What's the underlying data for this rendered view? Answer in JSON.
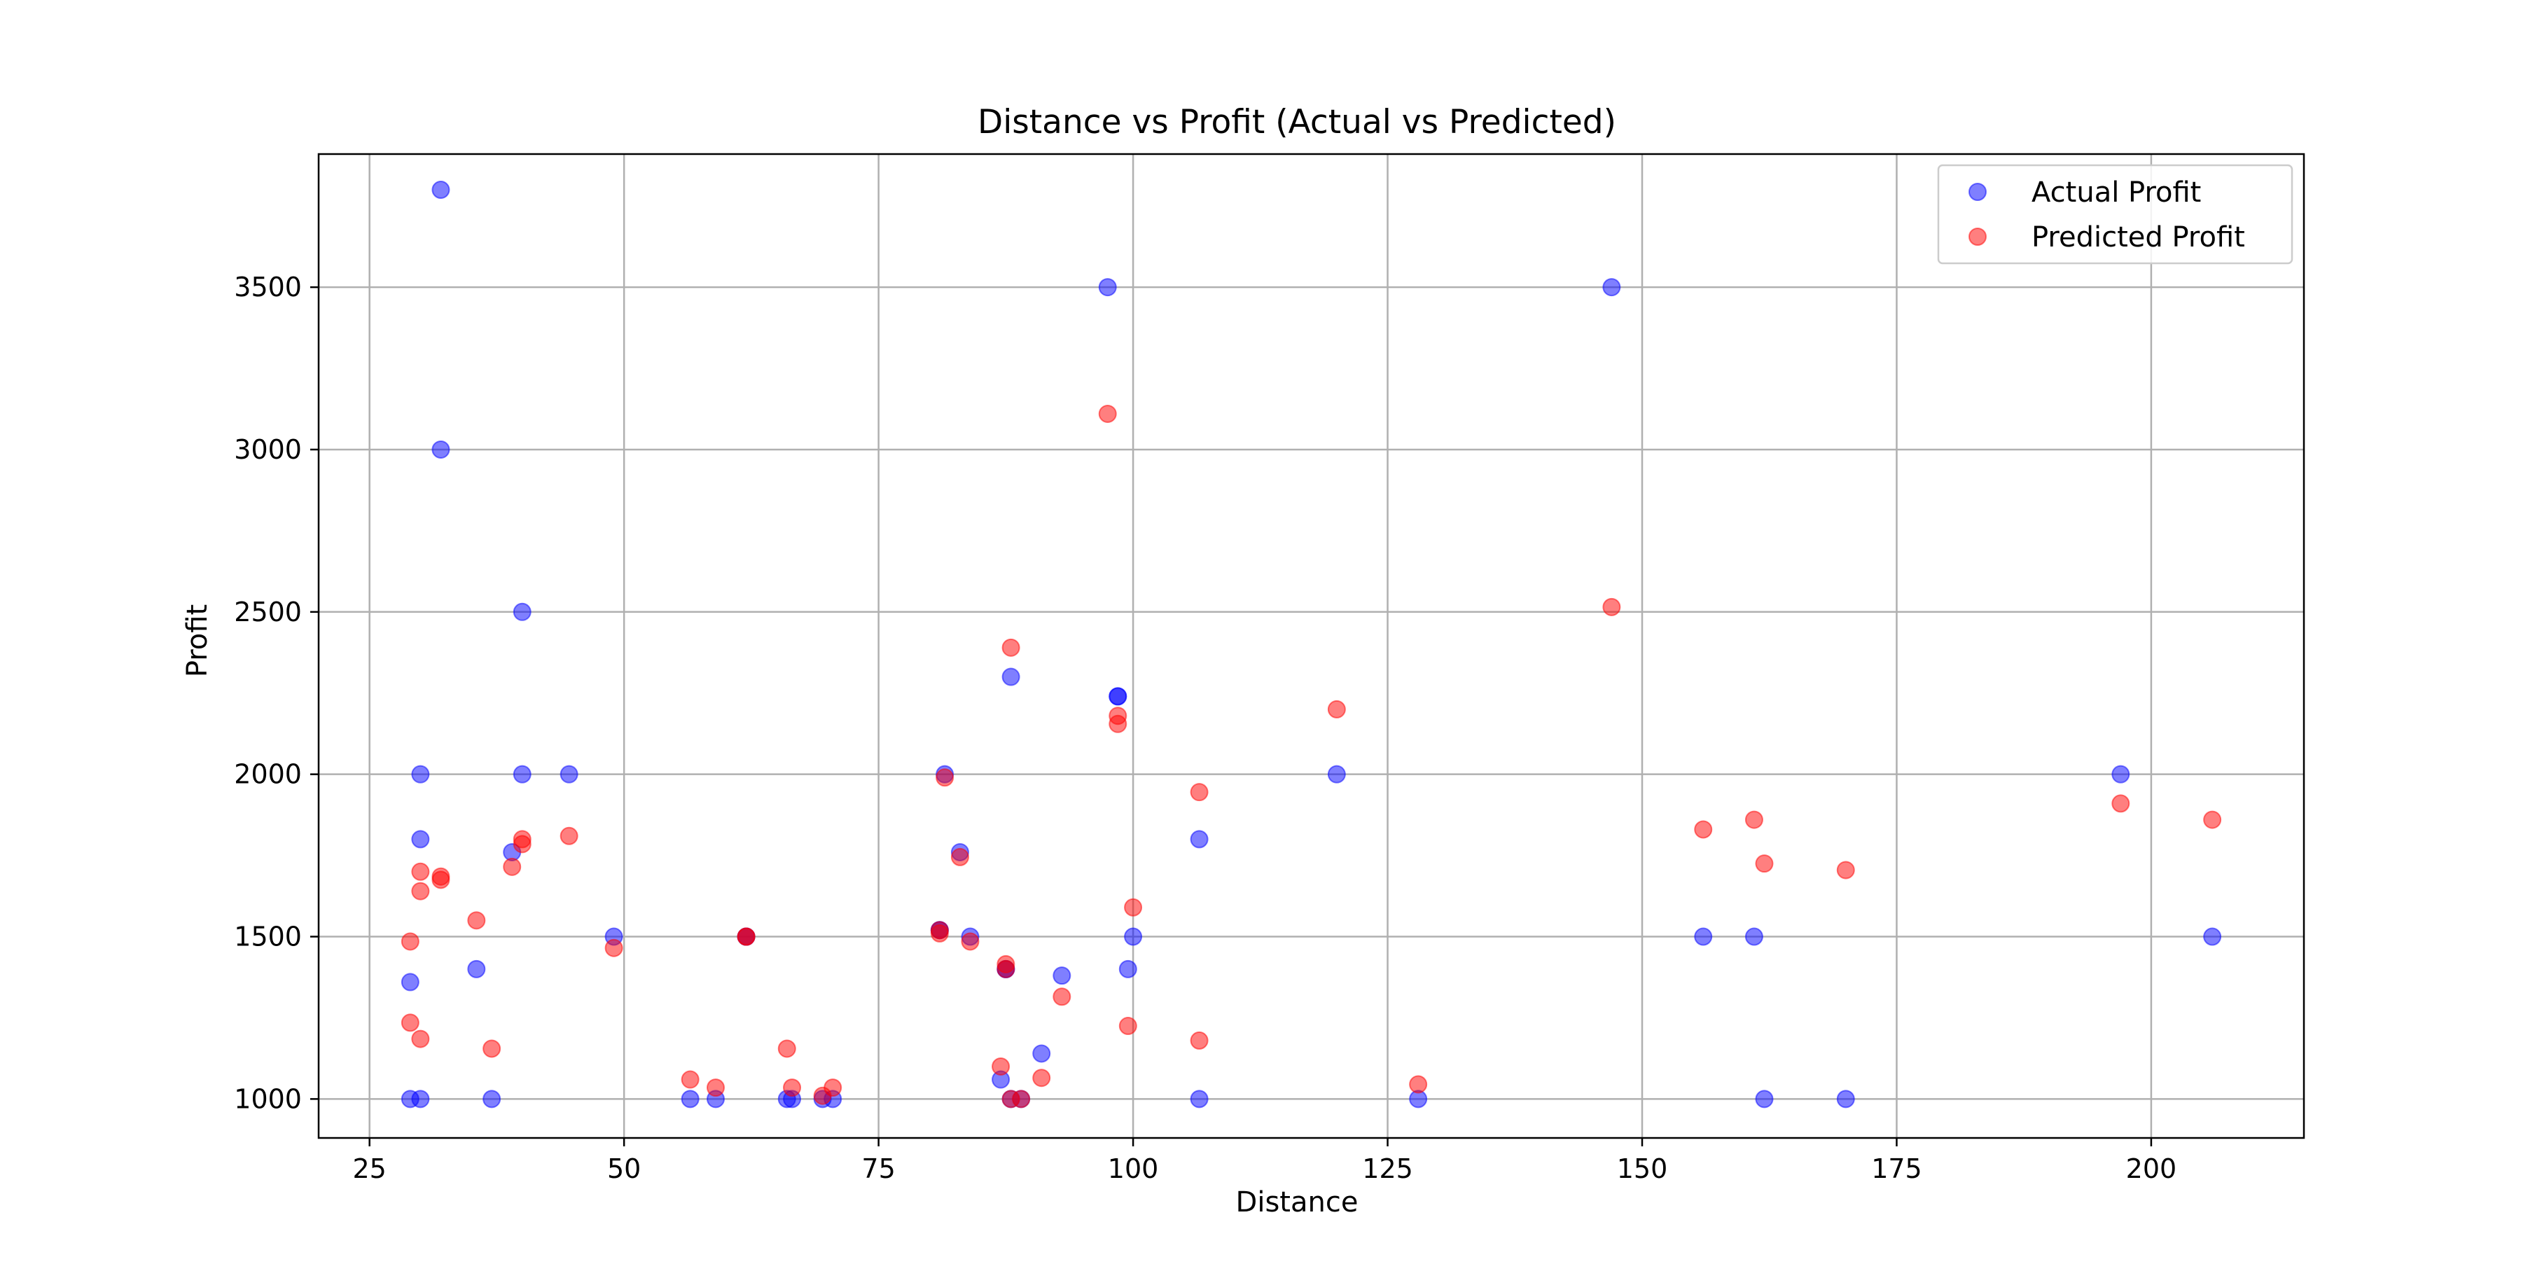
{
  "chart_data": {
    "type": "scatter",
    "title": "Distance vs Profit (Actual vs Predicted)",
    "xlabel": "Distance",
    "ylabel": "Profit",
    "xlim": [
      20,
      215
    ],
    "ylim": [
      880,
      3910
    ],
    "x_ticks": [
      25,
      50,
      75,
      100,
      125,
      150,
      175,
      200
    ],
    "y_ticks": [
      1000,
      1500,
      2000,
      2500,
      3000,
      3500
    ],
    "grid": true,
    "legend_position": "top-right",
    "series": [
      {
        "name": "Actual Profit",
        "color": "#0000ff",
        "alpha": 0.5,
        "points": [
          [
            32,
            3800
          ],
          [
            32,
            3000
          ],
          [
            40,
            2500
          ],
          [
            30,
            2000
          ],
          [
            40,
            2000
          ],
          [
            44.6,
            2000
          ],
          [
            30,
            1800
          ],
          [
            39,
            1760
          ],
          [
            29,
            1360
          ],
          [
            35.5,
            1400
          ],
          [
            29,
            1000
          ],
          [
            30,
            1000
          ],
          [
            37,
            1000
          ],
          [
            49,
            1500
          ],
          [
            56.5,
            1000
          ],
          [
            59,
            1000
          ],
          [
            62,
            1500
          ],
          [
            62,
            1500
          ],
          [
            66,
            1000
          ],
          [
            66.5,
            1000
          ],
          [
            69.5,
            1000
          ],
          [
            70.5,
            1000
          ],
          [
            81,
            1520
          ],
          [
            81,
            1520
          ],
          [
            81.5,
            2000
          ],
          [
            83,
            1760
          ],
          [
            84,
            1500
          ],
          [
            87,
            1060
          ],
          [
            87.5,
            1400
          ],
          [
            87.5,
            1400
          ],
          [
            88,
            2300
          ],
          [
            88,
            1000
          ],
          [
            89,
            1000
          ],
          [
            91,
            1140
          ],
          [
            93,
            1380
          ],
          [
            97.5,
            3500
          ],
          [
            98.5,
            2240
          ],
          [
            98.5,
            2240
          ],
          [
            99.5,
            1400
          ],
          [
            100,
            1500
          ],
          [
            106.5,
            1800
          ],
          [
            106.5,
            1000
          ],
          [
            120,
            2000
          ],
          [
            128,
            1000
          ],
          [
            147,
            3500
          ],
          [
            156,
            1500
          ],
          [
            161,
            1500
          ],
          [
            162,
            1000
          ],
          [
            170,
            1000
          ],
          [
            197,
            2000
          ],
          [
            206,
            1500
          ]
        ]
      },
      {
        "name": "Predicted Profit",
        "color": "#ff0000",
        "alpha": 0.5,
        "points": [
          [
            29,
            1485
          ],
          [
            29,
            1235
          ],
          [
            30,
            1700
          ],
          [
            30,
            1640
          ],
          [
            30,
            1185
          ],
          [
            32,
            1685
          ],
          [
            32,
            1675
          ],
          [
            35.5,
            1550
          ],
          [
            37,
            1155
          ],
          [
            39,
            1715
          ],
          [
            40,
            1800
          ],
          [
            40,
            1785
          ],
          [
            44.6,
            1810
          ],
          [
            49,
            1465
          ],
          [
            56.5,
            1060
          ],
          [
            59,
            1035
          ],
          [
            62,
            1500
          ],
          [
            62,
            1500
          ],
          [
            66,
            1155
          ],
          [
            66.5,
            1035
          ],
          [
            69.5,
            1010
          ],
          [
            70.5,
            1035
          ],
          [
            81,
            1520
          ],
          [
            81,
            1510
          ],
          [
            81.5,
            1990
          ],
          [
            83,
            1745
          ],
          [
            84,
            1485
          ],
          [
            87,
            1100
          ],
          [
            87.5,
            1415
          ],
          [
            87.5,
            1400
          ],
          [
            88,
            2390
          ],
          [
            88,
            1000
          ],
          [
            89,
            1000
          ],
          [
            91,
            1065
          ],
          [
            93,
            1315
          ],
          [
            97.5,
            3110
          ],
          [
            98.5,
            2180
          ],
          [
            98.5,
            2155
          ],
          [
            99.5,
            1225
          ],
          [
            100,
            1590
          ],
          [
            106.5,
            1945
          ],
          [
            106.5,
            1180
          ],
          [
            120,
            2200
          ],
          [
            128,
            1045
          ],
          [
            147,
            2515
          ],
          [
            156,
            1830
          ],
          [
            161,
            1860
          ],
          [
            162,
            1725
          ],
          [
            170,
            1705
          ],
          [
            197,
            1910
          ],
          [
            206,
            1860
          ]
        ]
      }
    ]
  }
}
